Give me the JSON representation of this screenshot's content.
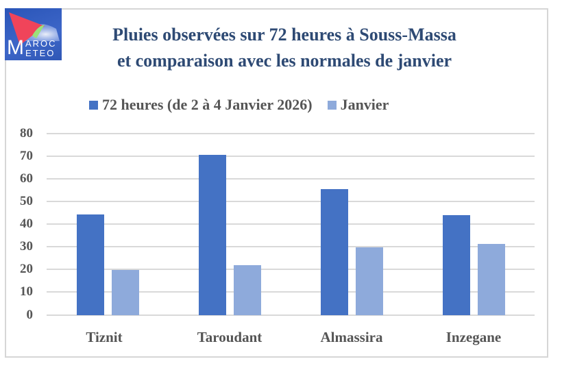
{
  "logo": {
    "line1_initial": "M",
    "line1_rest": "AROC",
    "line2_rest": "ETEO",
    "label": "Maroc Météo"
  },
  "title": {
    "line1": "Pluies observées sur 72 heures à Souss-Massa",
    "line2": "et comparaison avec les normales de janvier"
  },
  "legend": [
    {
      "label": "72 heures (de 2 à 4 Janvier 2026)",
      "color": "#4472c4"
    },
    {
      "label": "Janvier",
      "color": "#8eaadb"
    }
  ],
  "colors": {
    "title": "#2e4a74",
    "series1": "#4472c4",
    "series2": "#8eaadb",
    "grid": "#d9d9d9",
    "text": "#555555"
  },
  "chart_data": {
    "type": "bar",
    "title": "Pluies observées sur 72 heures à Souss-Massa et comparaison avec les normales de janvier",
    "categories": [
      "Tiznit",
      "Taroudant",
      "Almassira",
      "Inzegane"
    ],
    "series": [
      {
        "name": "72 heures (de 2 à 4 Janvier 2026)",
        "values": [
          44.5,
          70.5,
          55.5,
          44.2
        ]
      },
      {
        "name": "Janvier",
        "values": [
          20,
          22,
          30,
          31.5
        ]
      }
    ],
    "xlabel": "",
    "ylabel": "",
    "ylim": [
      0,
      80
    ],
    "yticks": [
      "80",
      "70",
      "60",
      "50",
      "40",
      "30",
      "20",
      "10",
      "0"
    ],
    "grid": true,
    "legend_position": "top"
  }
}
